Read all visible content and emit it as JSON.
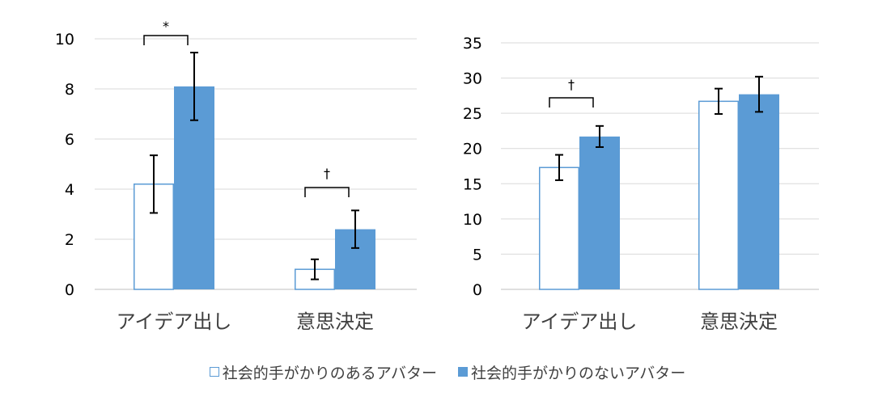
{
  "colors": {
    "with_cues_fill": "#ffffff",
    "with_cues_stroke": "#5b9bd5",
    "without_cues_fill": "#5b9bd5",
    "grid": "#d9d9d9",
    "axis": "#bfbfbf"
  },
  "legend": {
    "position": "bottom",
    "items": [
      "社会的手がかりのあるアバター",
      "社会的手がかりのないアバター"
    ]
  },
  "chart_data": [
    {
      "type": "bar",
      "categories": [
        "アイデア出し",
        "意思決定"
      ],
      "series": [
        {
          "name": "社会的手がかりのあるアバター",
          "values": [
            4.2,
            0.8
          ],
          "errors": [
            1.15,
            0.4
          ]
        },
        {
          "name": "社会的手がかりのないアバター",
          "values": [
            8.1,
            2.4
          ],
          "errors": [
            1.35,
            0.75
          ]
        }
      ],
      "ylim": [
        0,
        10
      ],
      "yticks": [
        0,
        2,
        4,
        6,
        8,
        10
      ],
      "ytick_labels": [
        "0",
        "2",
        "4",
        "6",
        "8",
        "10"
      ],
      "grid": true,
      "annotations": [
        {
          "category_index": 0,
          "text": "*"
        },
        {
          "category_index": 1,
          "text": "†"
        }
      ]
    },
    {
      "type": "bar",
      "categories": [
        "アイデア出し",
        "意思決定"
      ],
      "series": [
        {
          "name": "社会的手がかりのあるアバター",
          "values": [
            17.3,
            26.7
          ],
          "errors": [
            1.8,
            1.8
          ]
        },
        {
          "name": "社会的手がかりのないアバター",
          "values": [
            21.7,
            27.7
          ],
          "errors": [
            1.5,
            2.5
          ]
        }
      ],
      "ylim": [
        0,
        35
      ],
      "yticks": [
        0,
        5,
        10,
        15,
        20,
        25,
        30,
        35
      ],
      "ytick_labels": [
        "0",
        "5",
        "10",
        "15",
        "20",
        "25",
        "30",
        "35"
      ],
      "grid": true,
      "annotations": [
        {
          "category_index": 0,
          "text": "†"
        }
      ]
    }
  ]
}
